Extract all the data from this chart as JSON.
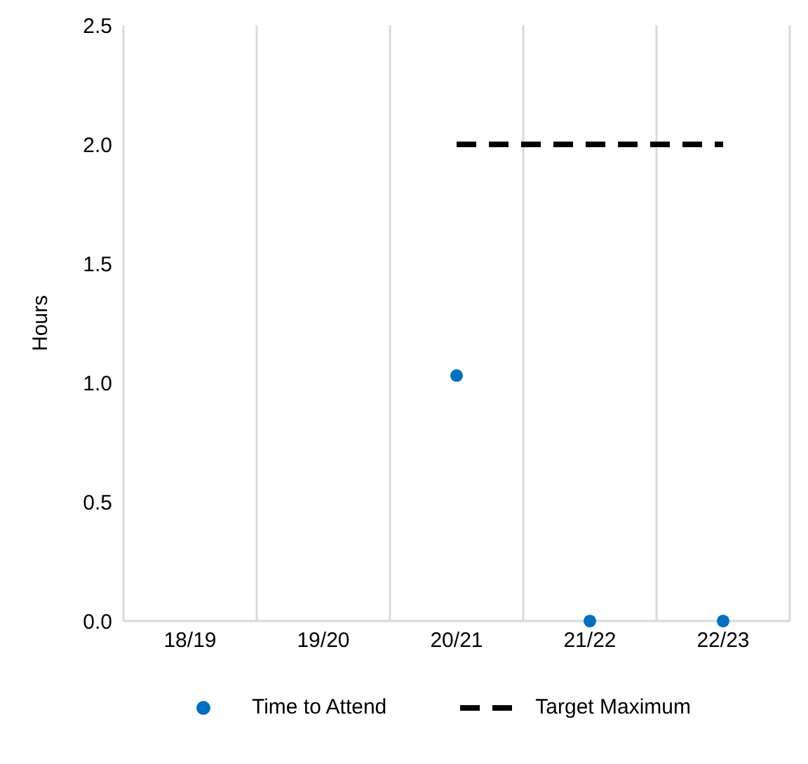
{
  "chart_data": {
    "type": "scatter",
    "ylabel": "Hours",
    "categories": [
      "18/19",
      "19/20",
      "20/21",
      "21/22",
      "22/23"
    ],
    "series": [
      {
        "name": "Time to Attend",
        "color": "#0070c0",
        "marker": "circle",
        "values": [
          null,
          null,
          1.03,
          0,
          0
        ]
      },
      {
        "name": "Target Maximum",
        "type": "line",
        "color": "#000000",
        "line_style": "dashed",
        "marker": "none",
        "values": [
          null,
          null,
          2,
          2,
          2
        ]
      }
    ],
    "ylim": [
      0,
      2.5
    ],
    "yticks": [
      {
        "value": 0,
        "label": "0.0"
      },
      {
        "value": 0.5,
        "label": "0.5"
      },
      {
        "value": 1,
        "label": "1.0"
      },
      {
        "value": 1.5,
        "label": "1.5"
      },
      {
        "value": 2,
        "label": "2.0"
      },
      {
        "value": 2.5,
        "label": "2.5"
      }
    ],
    "grid": "x",
    "legend": "bottom"
  }
}
